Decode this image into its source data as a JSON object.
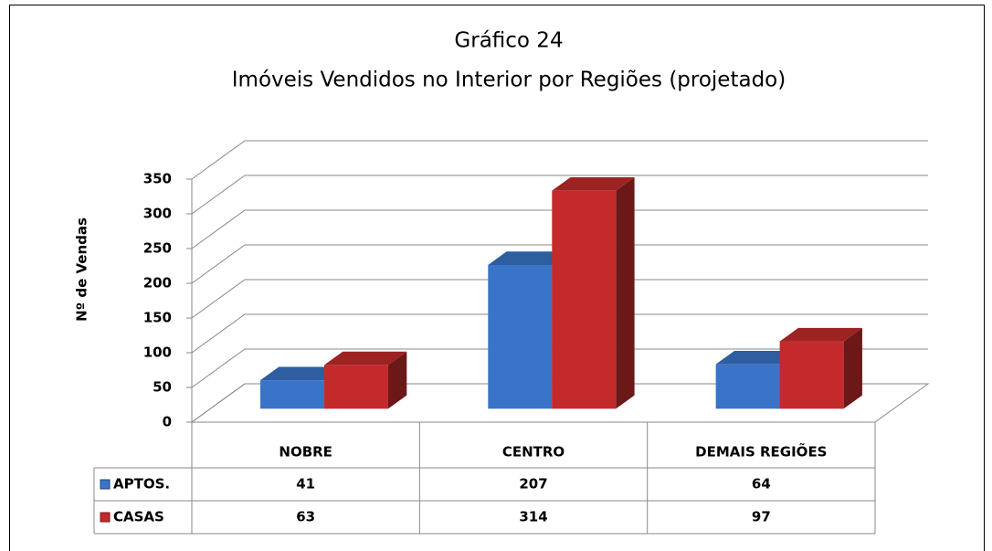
{
  "chart_data": {
    "type": "bar",
    "title": "Gráfico 24",
    "subtitle": "Imóveis Vendidos no Interior por Regiões (projetado)",
    "y_label": "Nº de Vendas",
    "categories": [
      "NOBRE",
      "CENTRO",
      "DEMAIS REGIÕES"
    ],
    "series": [
      {
        "name": "APTOS.",
        "color": "#3a74c8",
        "values": [
          41,
          207,
          64
        ]
      },
      {
        "name": "CASAS",
        "color": "#c42a2b",
        "values": [
          63,
          314,
          97
        ]
      }
    ],
    "ylim": [
      0,
      350
    ],
    "yticks": [
      0,
      50,
      100,
      150,
      200,
      250,
      300,
      350
    ],
    "grid": true
  }
}
